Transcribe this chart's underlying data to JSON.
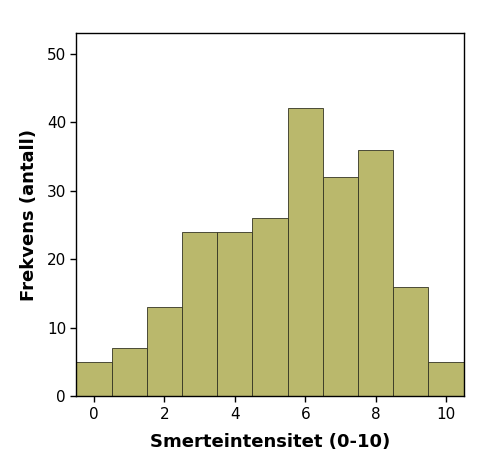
{
  "bar_centers": [
    0,
    1,
    2,
    3,
    4,
    5,
    6,
    7,
    8,
    9,
    10
  ],
  "bar_heights": [
    5,
    7,
    13,
    24,
    24,
    26,
    42,
    32,
    36,
    16,
    5
  ],
  "bar_color": "#bab86c",
  "bar_edgecolor": "#333322",
  "bar_width": 1.0,
  "xlabel": "Smerteintensitet (0-10)",
  "ylabel": "Frekvens (antall)",
  "xlim": [
    -0.5,
    10.5
  ],
  "ylim": [
    0,
    53
  ],
  "xticks": [
    0,
    2,
    4,
    6,
    8,
    10
  ],
  "yticks": [
    0,
    10,
    20,
    30,
    40,
    50
  ],
  "title": "",
  "xlabel_fontsize": 13,
  "ylabel_fontsize": 13,
  "tick_fontsize": 11,
  "background_color": "#ffffff"
}
